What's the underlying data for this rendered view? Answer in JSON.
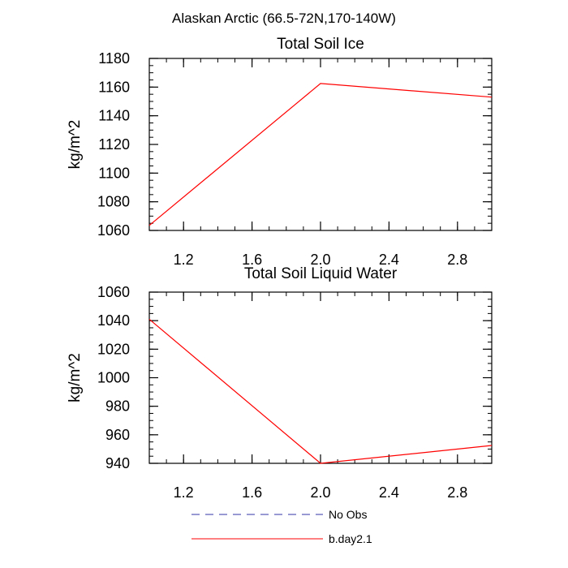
{
  "page_title": "Alaskan Arctic (66.5-72N,170-140W)",
  "legend": [
    {
      "label": "No Obs",
      "color": "#3333aa",
      "dash": true
    },
    {
      "label": "b.day2.1",
      "color": "#ff0000",
      "dash": false
    }
  ],
  "chart_data": [
    {
      "type": "line",
      "title": "Total Soil Ice",
      "xlabel": "",
      "ylabel": "kg/m^2",
      "xlim": [
        1.0,
        3.0
      ],
      "ylim": [
        1060,
        1180
      ],
      "xticks": [
        1.2,
        1.6,
        2.0,
        2.4,
        2.8
      ],
      "xtick_labels": [
        "1.2",
        "1.6",
        "2.0",
        "2.4",
        "2.8"
      ],
      "yticks": [
        1060,
        1080,
        1100,
        1120,
        1140,
        1160,
        1180
      ],
      "ytick_labels": [
        "1060",
        "1080",
        "1100",
        "1120",
        "1140",
        "1160",
        "1180"
      ],
      "series": [
        {
          "name": "b.day2.1",
          "color": "#ff0000",
          "x": [
            1,
            2,
            3
          ],
          "y": [
            1063.5,
            1162.5,
            1153
          ]
        }
      ]
    },
    {
      "type": "line",
      "title": "Total Soil Liquid Water",
      "xlabel": "",
      "ylabel": "kg/m^2",
      "xlim": [
        1.0,
        3.0
      ],
      "ylim": [
        940,
        1060
      ],
      "xticks": [
        1.2,
        1.6,
        2.0,
        2.4,
        2.8
      ],
      "xtick_labels": [
        "1.2",
        "1.6",
        "2.0",
        "2.4",
        "2.8"
      ],
      "yticks": [
        940,
        960,
        980,
        1000,
        1020,
        1040,
        1060
      ],
      "ytick_labels": [
        "940",
        "960",
        "980",
        "1000",
        "1020",
        "1040",
        "1060"
      ],
      "series": [
        {
          "name": "b.day2.1",
          "color": "#ff0000",
          "x": [
            1,
            2,
            3
          ],
          "y": [
            1041,
            940,
            952.5
          ]
        }
      ]
    }
  ]
}
